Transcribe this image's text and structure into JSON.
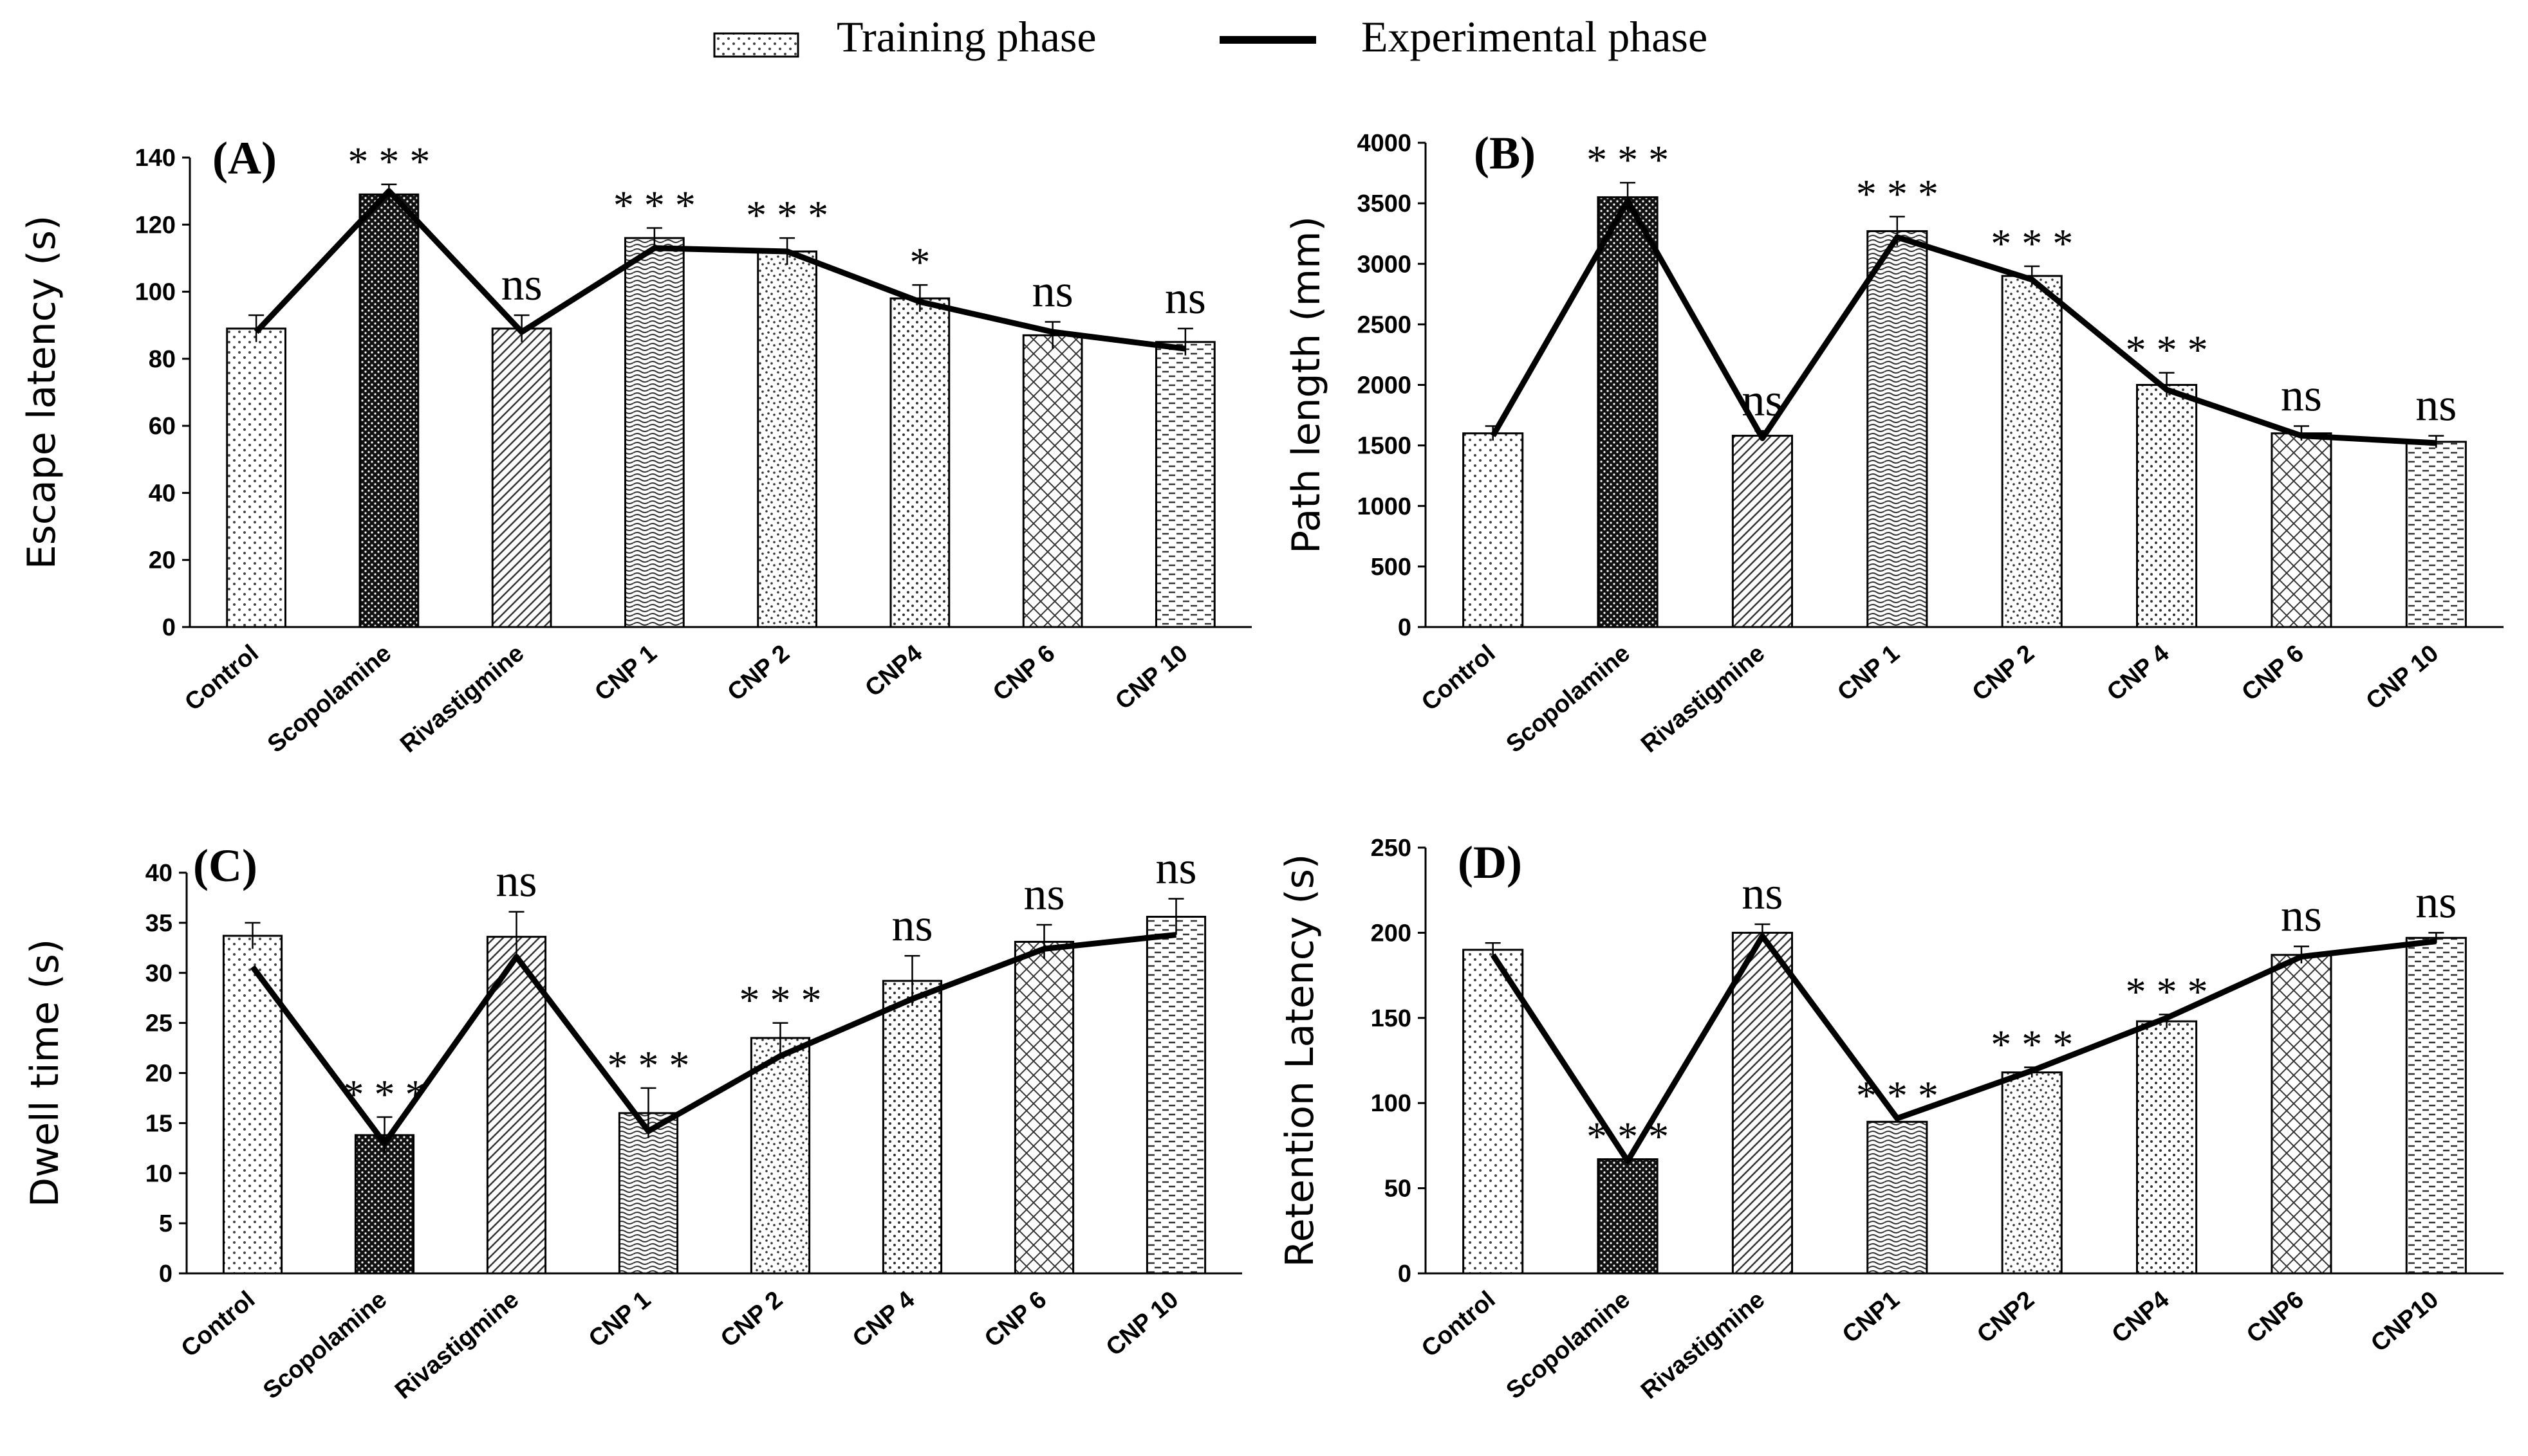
{
  "legend": {
    "bar_label": "Training phase",
    "line_label": "Experimental phase"
  },
  "chart_data": [
    {
      "panel": "(A)",
      "type": "bar+line",
      "ylabel": "Escape latency (s)",
      "ylim": [
        0,
        140
      ],
      "yticks": [
        0,
        20,
        40,
        60,
        80,
        100,
        120,
        140
      ],
      "categories": [
        "Control",
        "Scopolamine",
        "Rivastigmine",
        "CNP 1",
        "CNP 2",
        "CNP4",
        "CNP 6",
        "CNP 10"
      ],
      "series": [
        {
          "name": "Training phase",
          "kind": "bar",
          "values": [
            89,
            129,
            89,
            116,
            112,
            98,
            87,
            85
          ],
          "errors": [
            4,
            3,
            4,
            3,
            4,
            4,
            4,
            4
          ]
        },
        {
          "name": "Experimental phase",
          "kind": "line",
          "values": [
            88,
            130,
            88,
            113,
            112,
            97,
            88,
            83
          ]
        }
      ],
      "annotations": [
        "",
        "***",
        "ns",
        "***",
        "***",
        "*",
        "ns",
        "ns"
      ]
    },
    {
      "panel": "(B)",
      "type": "bar+line",
      "ylabel": "Path length (mm)",
      "ylim": [
        0,
        4000
      ],
      "yticks": [
        0,
        500,
        1000,
        1500,
        2000,
        2500,
        3000,
        3500,
        4000
      ],
      "categories": [
        "Control",
        "Scopolamine",
        "Rivastigmine",
        "CNP 1",
        "CNP 2",
        "CNP 4",
        "CNP 6",
        "CNP 10"
      ],
      "series": [
        {
          "name": "Training phase",
          "kind": "bar",
          "values": [
            1600,
            3550,
            1580,
            3270,
            2900,
            2000,
            1600,
            1530
          ],
          "errors": [
            60,
            120,
            40,
            120,
            80,
            100,
            60,
            50
          ]
        },
        {
          "name": "Experimental phase",
          "kind": "line",
          "values": [
            1580,
            3520,
            1560,
            3220,
            2870,
            1960,
            1580,
            1520
          ]
        }
      ],
      "annotations": [
        "",
        "***",
        "ns",
        "***",
        "***",
        "***",
        "ns",
        "ns"
      ]
    },
    {
      "panel": "(C)",
      "type": "bar+line",
      "ylabel": "Dwell time (s)",
      "ylim": [
        0,
        40
      ],
      "yticks": [
        0,
        5,
        10,
        15,
        20,
        25,
        30,
        35,
        40
      ],
      "categories": [
        "Control",
        "Scopolamine",
        "Rivastigmine",
        "CNP 1",
        "CNP 2",
        "CNP 4",
        "CNP 6",
        "CNP 10"
      ],
      "series": [
        {
          "name": "Training phase",
          "kind": "bar",
          "values": [
            33.7,
            13.8,
            33.6,
            16,
            23.5,
            29.2,
            33.1,
            35.6
          ],
          "errors": [
            1.3,
            1.8,
            2.5,
            2.5,
            1.5,
            2.5,
            1.7,
            1.8
          ]
        },
        {
          "name": "Experimental phase",
          "kind": "line",
          "values": [
            30.6,
            13.0,
            31.6,
            14.2,
            21.7,
            27.4,
            32.4,
            33.8
          ]
        }
      ],
      "annotations": [
        "",
        "***",
        "ns",
        "***",
        "***",
        "ns",
        "ns",
        "ns"
      ]
    },
    {
      "panel": "(D)",
      "type": "bar+line",
      "ylabel": "Retention Latency (s)",
      "ylim": [
        0,
        250
      ],
      "yticks": [
        0,
        50,
        100,
        150,
        200,
        250
      ],
      "categories": [
        "Control",
        "Scopolamine",
        "Rivastigmine",
        "CNP1",
        "CNP2",
        "CNP4",
        "CNP6",
        "CNP10"
      ],
      "series": [
        {
          "name": "Training phase",
          "kind": "bar",
          "values": [
            190,
            67,
            200,
            89,
            118,
            148,
            187,
            197
          ],
          "errors": [
            4,
            0,
            5,
            0,
            3,
            4,
            5,
            3
          ]
        },
        {
          "name": "Experimental phase",
          "kind": "line",
          "values": [
            187,
            66,
            198,
            91,
            119,
            150,
            186,
            195
          ]
        }
      ],
      "annotations": [
        "",
        "***",
        "ns",
        "***",
        "***",
        "***",
        "ns",
        "ns"
      ]
    }
  ]
}
